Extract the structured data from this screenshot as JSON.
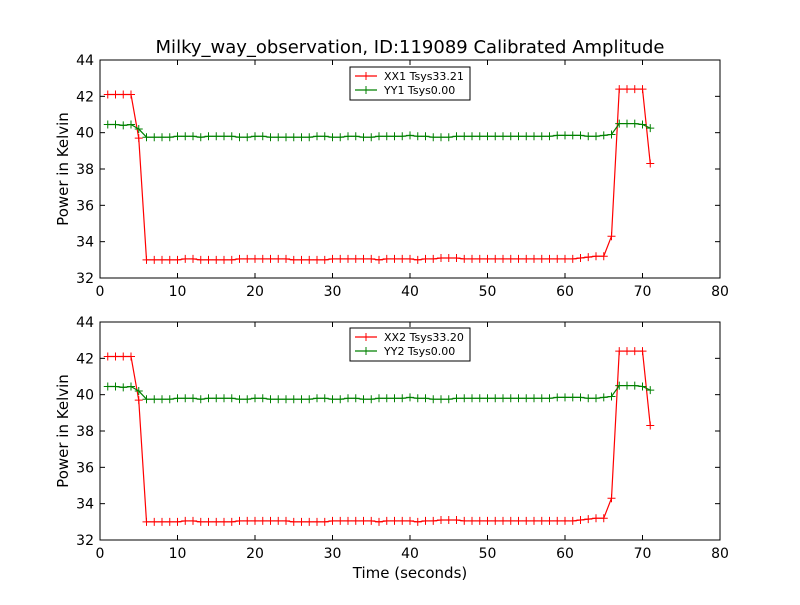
{
  "title": "Milky_way_observation, ID:119089 Calibrated Amplitude",
  "xlabel": "Time (seconds)",
  "chart_data": [
    {
      "type": "line",
      "ylabel": "Power in Kelvin",
      "xlim": [
        0,
        80
      ],
      "ylim": [
        32,
        44
      ],
      "xticks": [
        0,
        10,
        20,
        30,
        40,
        50,
        60,
        70,
        80
      ],
      "yticks": [
        32,
        34,
        36,
        38,
        40,
        42,
        44
      ],
      "legend_position": "top-center",
      "series": [
        {
          "name": "XX1 Tsys33.21",
          "color": "#ff0000",
          "marker": "plus",
          "x": [
            1,
            2,
            3,
            4,
            5,
            6,
            7,
            8,
            9,
            10,
            11,
            12,
            13,
            14,
            15,
            16,
            17,
            18,
            19,
            20,
            21,
            22,
            23,
            24,
            25,
            26,
            27,
            28,
            29,
            30,
            31,
            32,
            33,
            34,
            35,
            36,
            37,
            38,
            39,
            40,
            41,
            42,
            43,
            44,
            45,
            46,
            47,
            48,
            49,
            50,
            51,
            52,
            53,
            54,
            55,
            56,
            57,
            58,
            59,
            60,
            61,
            62,
            63,
            64,
            65,
            66,
            67,
            68,
            69,
            70,
            71
          ],
          "y": [
            42.1,
            42.1,
            42.1,
            42.1,
            39.7,
            33.0,
            33.0,
            33.0,
            33.0,
            33.0,
            33.05,
            33.05,
            33.0,
            33.0,
            33.0,
            33.0,
            33.0,
            33.05,
            33.05,
            33.05,
            33.05,
            33.05,
            33.05,
            33.05,
            33.0,
            33.0,
            33.0,
            33.0,
            33.0,
            33.05,
            33.05,
            33.05,
            33.05,
            33.05,
            33.05,
            33.0,
            33.05,
            33.05,
            33.05,
            33.05,
            33.0,
            33.05,
            33.05,
            33.1,
            33.1,
            33.1,
            33.05,
            33.05,
            33.05,
            33.05,
            33.05,
            33.05,
            33.05,
            33.05,
            33.05,
            33.05,
            33.05,
            33.05,
            33.05,
            33.05,
            33.05,
            33.1,
            33.15,
            33.2,
            33.2,
            34.3,
            42.4,
            42.4,
            42.4,
            42.4,
            38.3
          ]
        },
        {
          "name": "YY1 Tsys0.00",
          "color": "#008000",
          "marker": "plus",
          "x": [
            1,
            2,
            3,
            4,
            5,
            6,
            7,
            8,
            9,
            10,
            11,
            12,
            13,
            14,
            15,
            16,
            17,
            18,
            19,
            20,
            21,
            22,
            23,
            24,
            25,
            26,
            27,
            28,
            29,
            30,
            31,
            32,
            33,
            34,
            35,
            36,
            37,
            38,
            39,
            40,
            41,
            42,
            43,
            44,
            45,
            46,
            47,
            48,
            49,
            50,
            51,
            52,
            53,
            54,
            55,
            56,
            57,
            58,
            59,
            60,
            61,
            62,
            63,
            64,
            65,
            66,
            67,
            68,
            69,
            70,
            71
          ],
          "y": [
            40.45,
            40.45,
            40.4,
            40.45,
            40.2,
            39.75,
            39.75,
            39.75,
            39.75,
            39.8,
            39.8,
            39.8,
            39.75,
            39.8,
            39.8,
            39.8,
            39.8,
            39.75,
            39.75,
            39.8,
            39.8,
            39.75,
            39.75,
            39.75,
            39.75,
            39.75,
            39.75,
            39.8,
            39.8,
            39.75,
            39.75,
            39.8,
            39.8,
            39.75,
            39.75,
            39.8,
            39.8,
            39.8,
            39.8,
            39.85,
            39.8,
            39.8,
            39.75,
            39.75,
            39.75,
            39.8,
            39.8,
            39.8,
            39.8,
            39.8,
            39.8,
            39.8,
            39.8,
            39.8,
            39.8,
            39.8,
            39.8,
            39.8,
            39.85,
            39.85,
            39.85,
            39.85,
            39.8,
            39.8,
            39.85,
            39.9,
            40.5,
            40.5,
            40.5,
            40.45,
            40.25
          ]
        }
      ]
    },
    {
      "type": "line",
      "ylabel": "Power in Kelvin",
      "xlim": [
        0,
        80
      ],
      "ylim": [
        32,
        44
      ],
      "xticks": [
        0,
        10,
        20,
        30,
        40,
        50,
        60,
        70,
        80
      ],
      "yticks": [
        32,
        34,
        36,
        38,
        40,
        42,
        44
      ],
      "legend_position": "top-center",
      "series": [
        {
          "name": "XX2 Tsys33.20",
          "color": "#ff0000",
          "marker": "plus",
          "x": [
            1,
            2,
            3,
            4,
            5,
            6,
            7,
            8,
            9,
            10,
            11,
            12,
            13,
            14,
            15,
            16,
            17,
            18,
            19,
            20,
            21,
            22,
            23,
            24,
            25,
            26,
            27,
            28,
            29,
            30,
            31,
            32,
            33,
            34,
            35,
            36,
            37,
            38,
            39,
            40,
            41,
            42,
            43,
            44,
            45,
            46,
            47,
            48,
            49,
            50,
            51,
            52,
            53,
            54,
            55,
            56,
            57,
            58,
            59,
            60,
            61,
            62,
            63,
            64,
            65,
            66,
            67,
            68,
            69,
            70,
            71
          ],
          "y": [
            42.1,
            42.1,
            42.1,
            42.1,
            39.7,
            33.0,
            33.0,
            33.0,
            33.0,
            33.0,
            33.05,
            33.05,
            33.0,
            33.0,
            33.0,
            33.0,
            33.0,
            33.05,
            33.05,
            33.05,
            33.05,
            33.05,
            33.05,
            33.05,
            33.0,
            33.0,
            33.0,
            33.0,
            33.0,
            33.05,
            33.05,
            33.05,
            33.05,
            33.05,
            33.05,
            33.0,
            33.05,
            33.05,
            33.05,
            33.05,
            33.0,
            33.05,
            33.05,
            33.1,
            33.1,
            33.1,
            33.05,
            33.05,
            33.05,
            33.05,
            33.05,
            33.05,
            33.05,
            33.05,
            33.05,
            33.05,
            33.05,
            33.05,
            33.05,
            33.05,
            33.05,
            33.1,
            33.15,
            33.2,
            33.2,
            34.3,
            42.4,
            42.4,
            42.4,
            42.4,
            38.3
          ]
        },
        {
          "name": "YY2 Tsys0.00",
          "color": "#008000",
          "marker": "plus",
          "x": [
            1,
            2,
            3,
            4,
            5,
            6,
            7,
            8,
            9,
            10,
            11,
            12,
            13,
            14,
            15,
            16,
            17,
            18,
            19,
            20,
            21,
            22,
            23,
            24,
            25,
            26,
            27,
            28,
            29,
            30,
            31,
            32,
            33,
            34,
            35,
            36,
            37,
            38,
            39,
            40,
            41,
            42,
            43,
            44,
            45,
            46,
            47,
            48,
            49,
            50,
            51,
            52,
            53,
            54,
            55,
            56,
            57,
            58,
            59,
            60,
            61,
            62,
            63,
            64,
            65,
            66,
            67,
            68,
            69,
            70,
            71
          ],
          "y": [
            40.45,
            40.45,
            40.4,
            40.45,
            40.2,
            39.75,
            39.75,
            39.75,
            39.75,
            39.8,
            39.8,
            39.8,
            39.75,
            39.8,
            39.8,
            39.8,
            39.8,
            39.75,
            39.75,
            39.8,
            39.8,
            39.75,
            39.75,
            39.75,
            39.75,
            39.75,
            39.75,
            39.8,
            39.8,
            39.75,
            39.75,
            39.8,
            39.8,
            39.75,
            39.75,
            39.8,
            39.8,
            39.8,
            39.8,
            39.85,
            39.8,
            39.8,
            39.75,
            39.75,
            39.75,
            39.8,
            39.8,
            39.8,
            39.8,
            39.8,
            39.8,
            39.8,
            39.8,
            39.8,
            39.8,
            39.8,
            39.8,
            39.8,
            39.85,
            39.85,
            39.85,
            39.85,
            39.8,
            39.8,
            39.85,
            39.9,
            40.5,
            40.5,
            40.5,
            40.45,
            40.25
          ]
        }
      ]
    }
  ]
}
